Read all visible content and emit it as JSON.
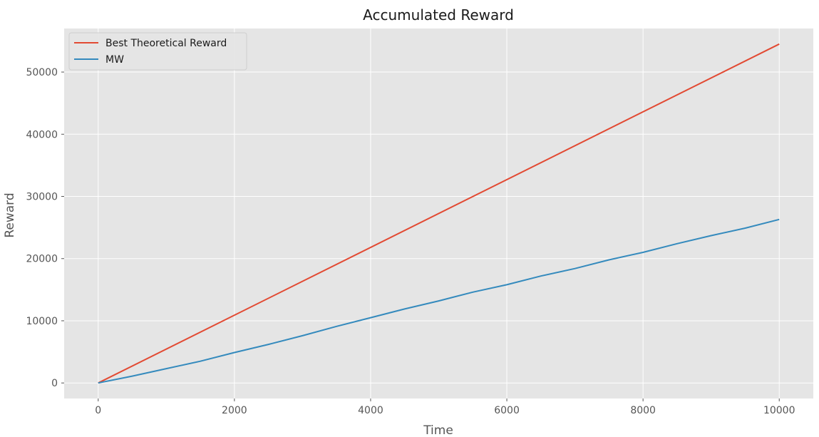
{
  "chart_data": {
    "type": "line",
    "title": "Accumulated Reward",
    "xlabel": "Time",
    "ylabel": "Reward",
    "xlim": [
      -500,
      10500
    ],
    "ylim": [
      -2500,
      57000
    ],
    "xticks": [
      0,
      2000,
      4000,
      6000,
      8000,
      10000
    ],
    "yticks": [
      0,
      10000,
      20000,
      30000,
      40000,
      50000
    ],
    "xtick_labels": [
      "0",
      "2000",
      "4000",
      "6000",
      "8000",
      "10000"
    ],
    "ytick_labels": [
      "0",
      "10000",
      "20000",
      "30000",
      "40000",
      "50000"
    ],
    "grid": true,
    "legend_position": "top-left",
    "series": [
      {
        "name": "Best Theoretical Reward",
        "color": "#e24a33",
        "x": [
          0,
          10000
        ],
        "y": [
          0,
          54500
        ]
      },
      {
        "name": "MW",
        "color": "#348abd",
        "x": [
          0,
          500,
          1000,
          1500,
          2000,
          2500,
          3000,
          3500,
          4000,
          4500,
          5000,
          5500,
          6000,
          6500,
          7000,
          7500,
          8000,
          8500,
          9000,
          9500,
          10000
        ],
        "y": [
          0,
          1100,
          2300,
          3500,
          4900,
          6200,
          7600,
          9100,
          10500,
          11900,
          13200,
          14600,
          15800,
          17200,
          18400,
          19800,
          21000,
          22400,
          23700,
          24900,
          26300
        ]
      }
    ]
  },
  "colors": {
    "plot_background": "#e5e5e5",
    "grid": "#ffffff"
  }
}
